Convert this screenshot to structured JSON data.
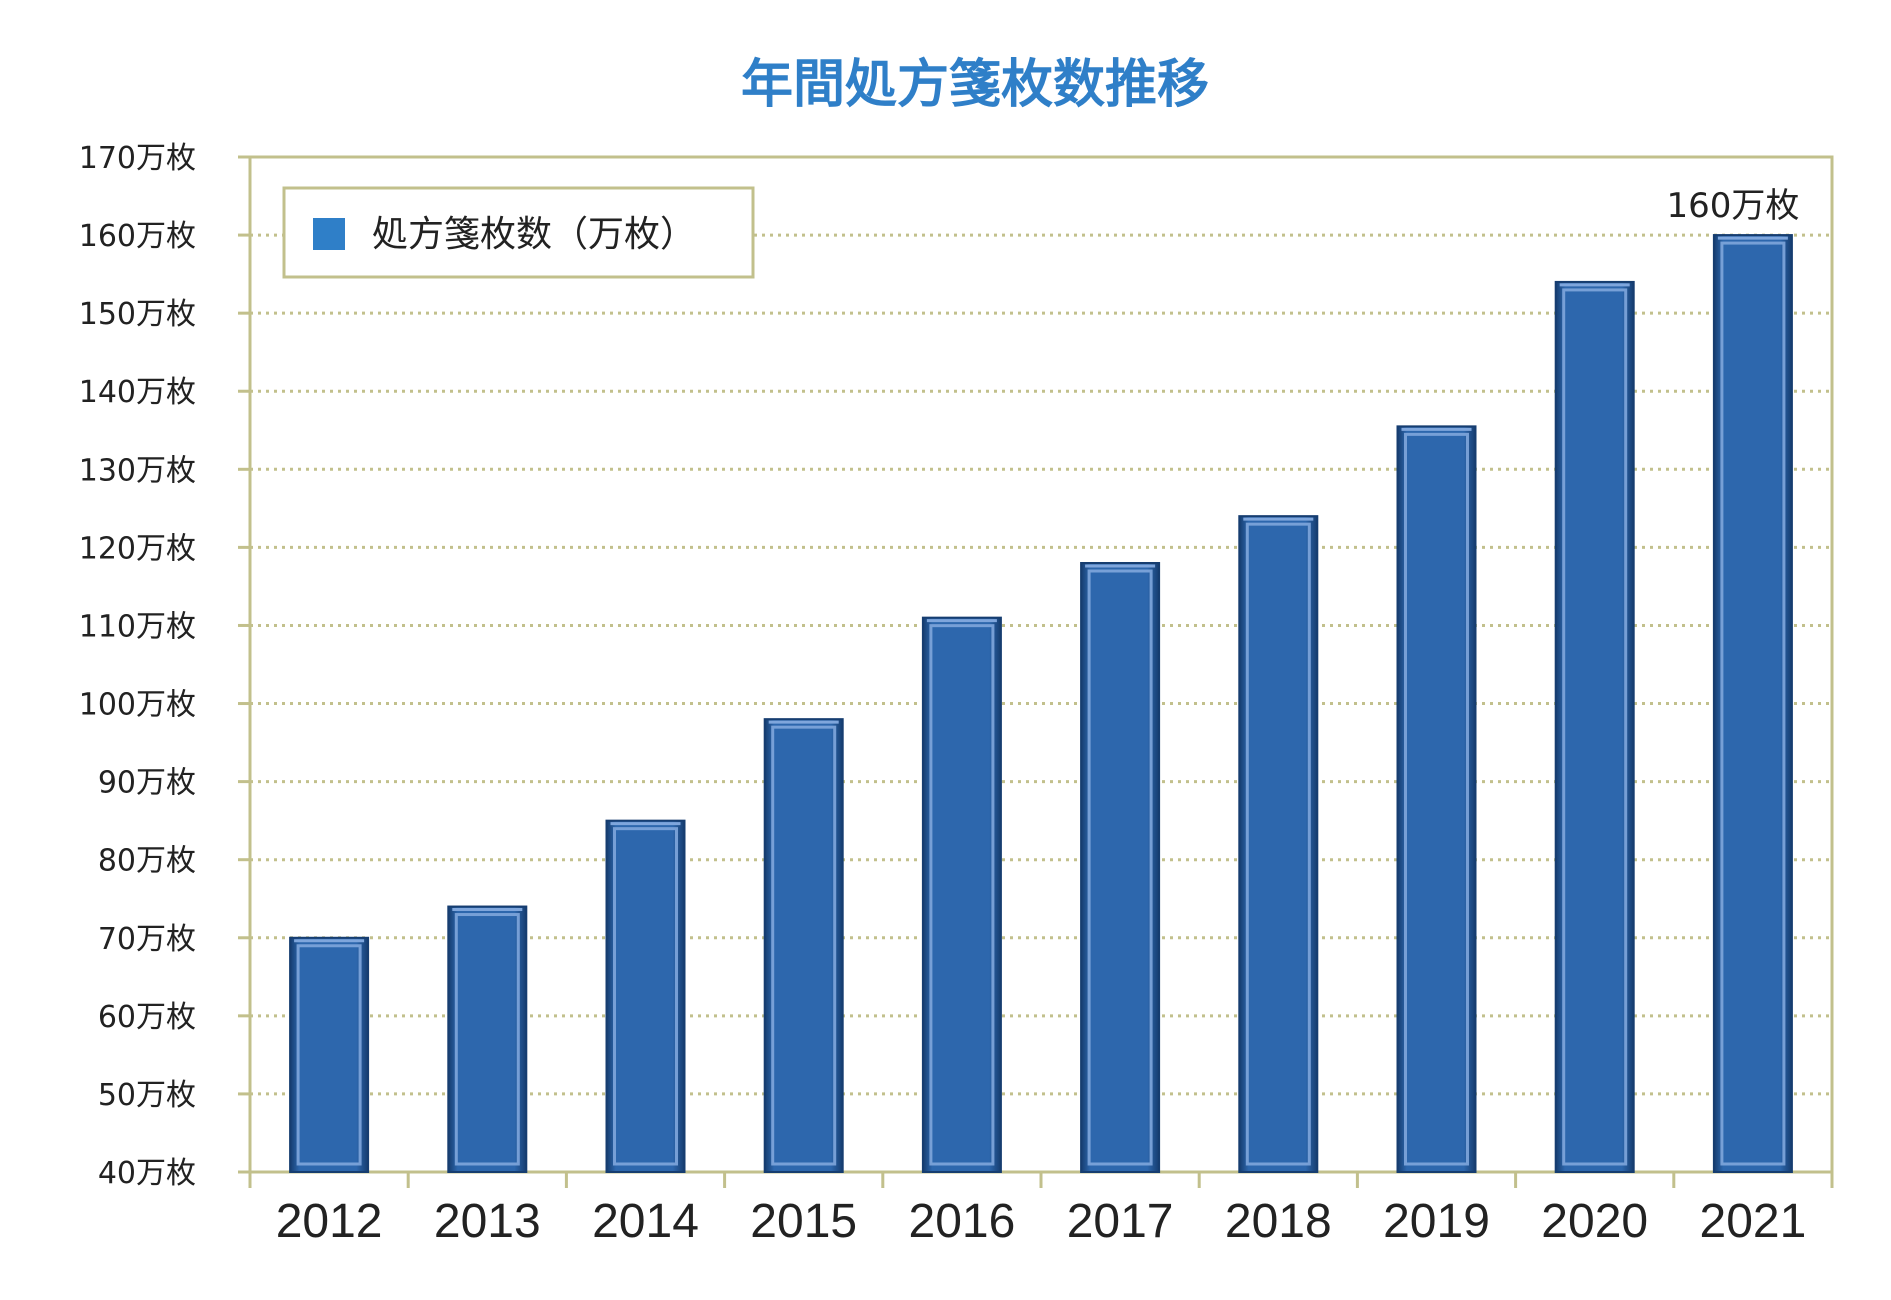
{
  "chart_data": {
    "type": "bar",
    "title": "年間処方箋枚数推移",
    "categories": [
      "2012",
      "2013",
      "2014",
      "2015",
      "2016",
      "2017",
      "2018",
      "2019",
      "2020",
      "2021"
    ],
    "series": [
      {
        "name": "処方箋枚数（万枚）",
        "values": [
          70,
          74,
          85,
          98,
          111,
          118,
          124,
          135.5,
          154,
          160
        ]
      }
    ],
    "ylim": [
      40,
      170
    ],
    "y_ticks": [
      {
        "value": 170,
        "label": "170万枚"
      },
      {
        "value": 160,
        "label": "160万枚"
      },
      {
        "value": 150,
        "label": "150万枚"
      },
      {
        "value": 140,
        "label": "140万枚"
      },
      {
        "value": 130,
        "label": "130万枚"
      },
      {
        "value": 120,
        "label": "120万枚"
      },
      {
        "value": 110,
        "label": "110万枚"
      },
      {
        "value": 100,
        "label": "100万枚"
      },
      {
        "value": 90,
        "label": "90万枚"
      },
      {
        "value": 80,
        "label": "80万枚"
      },
      {
        "value": 70,
        "label": "70万枚"
      },
      {
        "value": 60,
        "label": "60万枚"
      },
      {
        "value": 50,
        "label": "50万枚"
      },
      {
        "value": 40,
        "label": "40万枚"
      }
    ],
    "annotations": [
      {
        "category": "2021",
        "text": "160万枚"
      }
    ],
    "grid": true,
    "legend": "top-left",
    "colors": {
      "title": "#2f7fc8",
      "bar": "#2d67ad",
      "bar_highlight": "#7fa6dc",
      "bar_shadow": "#163d70",
      "legend_swatch": "#2f7fc8",
      "frame": "#c2c08c",
      "grid": "#c2c08c"
    }
  }
}
